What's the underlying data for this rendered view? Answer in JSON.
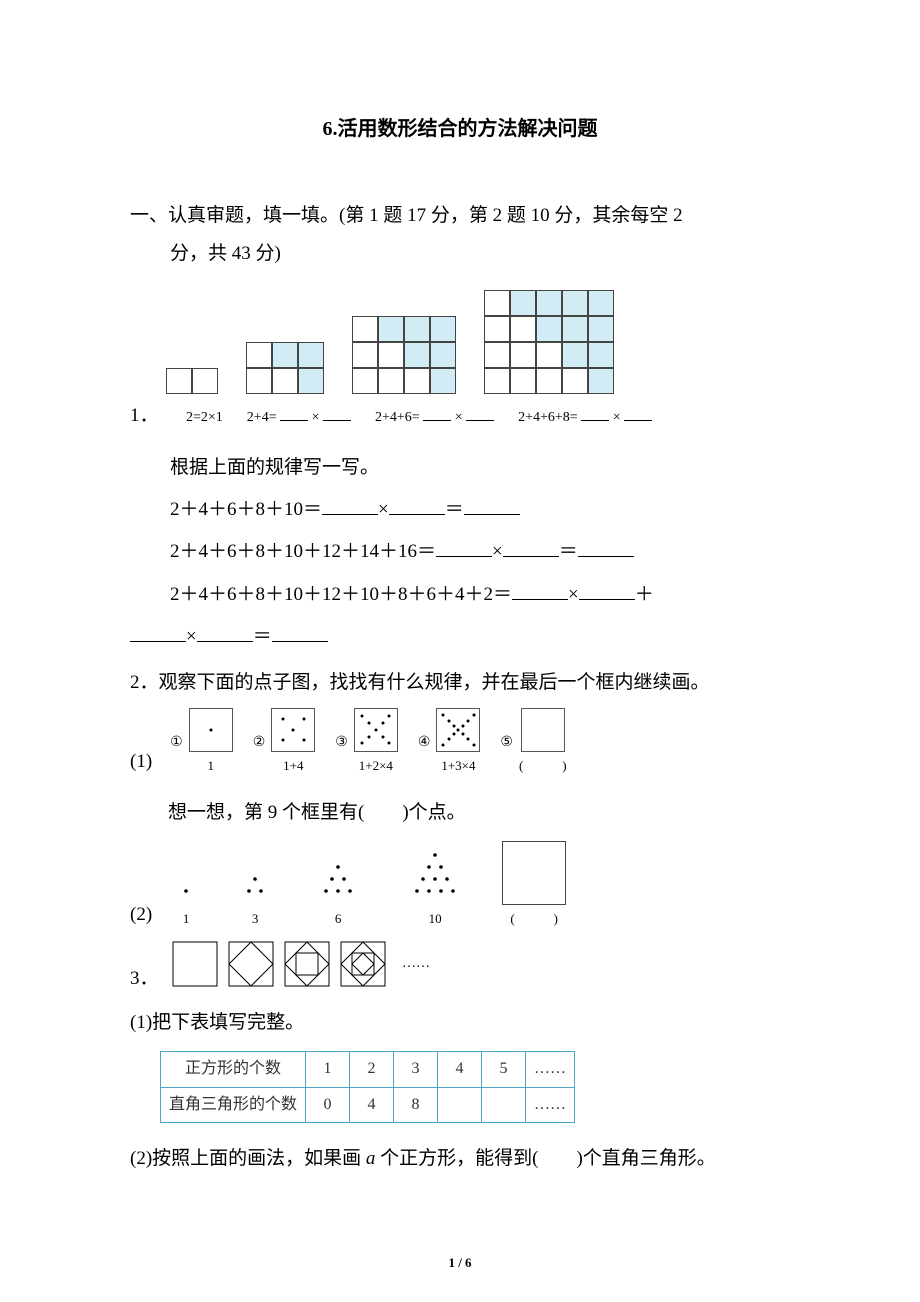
{
  "title": "6.活用数形结合的方法解决问题",
  "section1": {
    "heading": "一、认真审题，填一填。(第 1 题 17 分，第 2 题 10 分，其余每空 2",
    "heading_cont": "分，共 43 分)"
  },
  "q1": {
    "num": "1．",
    "eq1": "2=2×1",
    "eq2_pre": "2+4=",
    "eq3_pre": "2+4+6=",
    "eq4_pre": "2+4+6+8=",
    "times": "×",
    "instr": "根据上面的规律写一写。",
    "line1_pre": "2＋4＋6＋8＋10＝",
    "line2_pre": "2＋4＋6＋8＋10＋12＋14＋16＝",
    "line3_pre": "2＋4＋6＋8＋10＋12＋10＋8＋6＋4＋2＝",
    "eq": "＝",
    "plus": "＋",
    "grids": {
      "fill": "#d2ecf6",
      "g1": {
        "cols": 2,
        "rows": 1,
        "shaded": []
      },
      "g2": {
        "cols": 3,
        "rows": 2,
        "shaded": [
          [
            0,
            1
          ],
          [
            0,
            2
          ],
          [
            1,
            2
          ]
        ]
      },
      "g3": {
        "cols": 4,
        "rows": 3,
        "shaded": [
          [
            0,
            1
          ],
          [
            0,
            2
          ],
          [
            0,
            3
          ],
          [
            1,
            2
          ],
          [
            1,
            3
          ],
          [
            2,
            3
          ]
        ]
      },
      "g4": {
        "cols": 5,
        "rows": 4,
        "shaded": [
          [
            0,
            1
          ],
          [
            0,
            2
          ],
          [
            0,
            3
          ],
          [
            0,
            4
          ],
          [
            1,
            2
          ],
          [
            1,
            3
          ],
          [
            1,
            4
          ],
          [
            2,
            3
          ],
          [
            2,
            4
          ],
          [
            3,
            4
          ]
        ]
      }
    }
  },
  "q2": {
    "num": "2．",
    "text": "观察下面的点子图，找找有什么规律，并在最后一个框内继续画。",
    "part1_lead": "(1)",
    "circled": [
      "①",
      "②",
      "③",
      "④",
      "⑤"
    ],
    "labels": [
      "1",
      "1+4",
      "1+2×4",
      "1+3×4",
      "(　　　)"
    ],
    "think": "想一想，第 9 个框里有(　　)个点。",
    "part2_lead": "(2)",
    "tri_labels": [
      "1",
      "3",
      "6",
      "10",
      "(　　　)"
    ]
  },
  "q3": {
    "num": "3．",
    "ellipsis": "……",
    "p1": "(1)把下表填写完整。",
    "table": {
      "row1_label": "正方形的个数",
      "row2_label": "直角三角形的个数",
      "cols": [
        "1",
        "2",
        "3",
        "4",
        "5",
        "……"
      ],
      "row2": [
        "0",
        "4",
        "8",
        "",
        "",
        "……"
      ]
    },
    "p2_pre": "(2)按照上面的画法，如果画 ",
    "p2_a": "a",
    "p2_post": " 个正方形，能得到(　　)个直角三角形。"
  },
  "pagenum": "1 / 6",
  "colors": {
    "text": "#000000",
    "table_border": "#4aa5c9",
    "shade": "#d2ecf6",
    "bg": "#ffffff"
  }
}
